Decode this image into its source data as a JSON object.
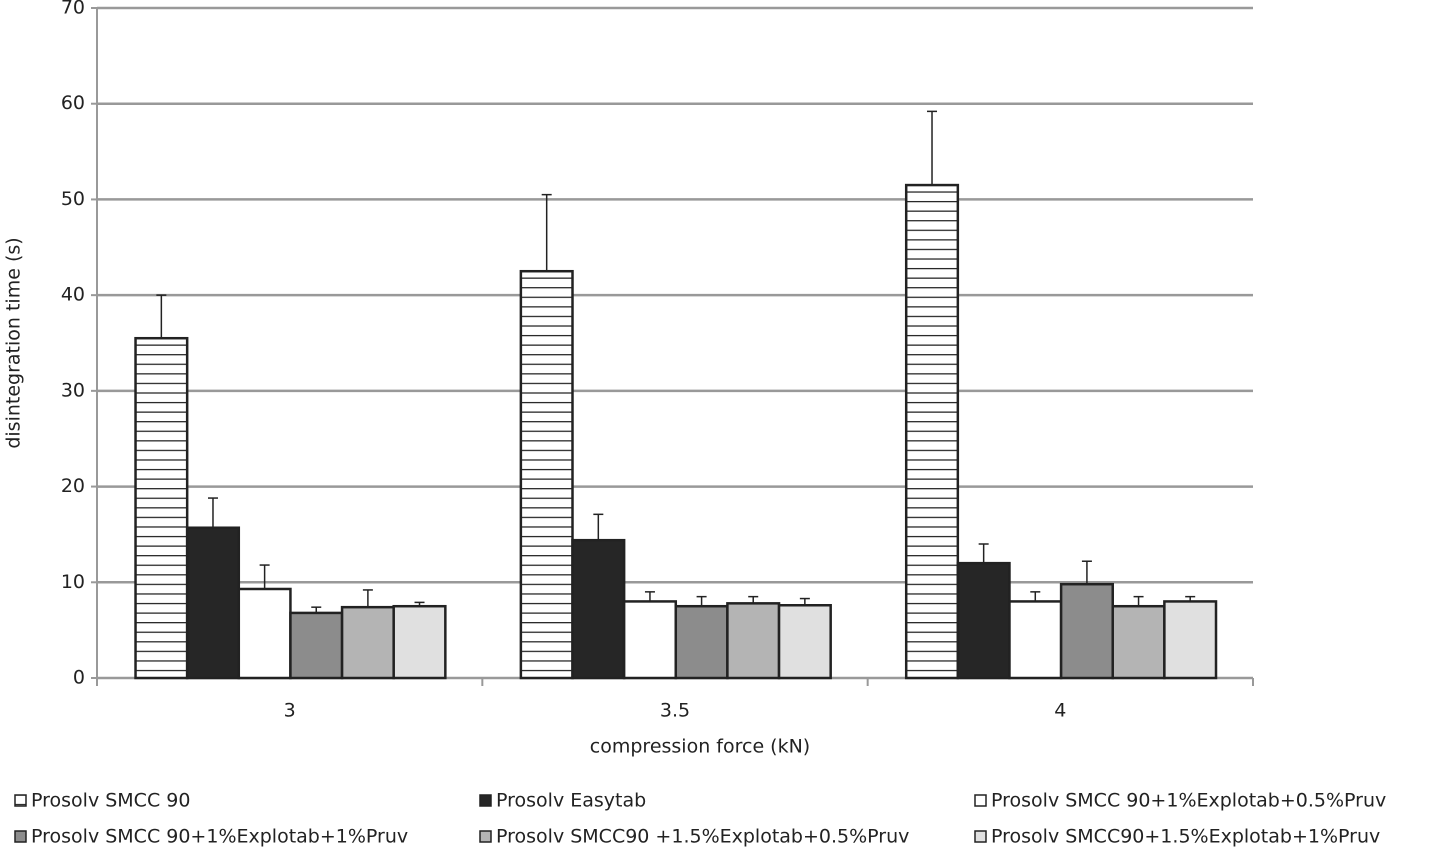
{
  "chart_data": {
    "type": "bar",
    "x_label": "compression force (kN)",
    "y_label": "disintegration time (s)",
    "categories": [
      "3",
      "3.5",
      "4"
    ],
    "series": [
      {
        "name": "Prosolv SMCC 90",
        "color": "#ffffff",
        "pattern": "hatch",
        "values": [
          35.5,
          42.5,
          51.5
        ],
        "errors": [
          4.5,
          8,
          7.7
        ]
      },
      {
        "name": "Prosolv Easytab",
        "color": "#262626",
        "values": [
          15.7,
          14.4,
          12
        ],
        "errors": [
          3.1,
          2.7,
          2
        ]
      },
      {
        "name": "Prosolv SMCC 90+1%Explotab+0.5%Pruv",
        "color": "#ffffff",
        "values": [
          9.3,
          8,
          8
        ],
        "errors": [
          2.5,
          1,
          1
        ]
      },
      {
        "name": "Prosolv SMCC 90+1%Explotab+1%Pruv",
        "color": "#8c8c8c",
        "values": [
          6.8,
          7.5,
          9.8
        ],
        "errors": [
          0.6,
          1,
          2.4
        ]
      },
      {
        "name": "Prosolv SMCC90 +1.5%Explotab+0.5%Pruv",
        "color": "#b4b4b4",
        "values": [
          7.4,
          7.8,
          7.5
        ],
        "errors": [
          1.8,
          0.7,
          1
        ]
      },
      {
        "name": "Prosolv SMCC90+1.5%Explotab+1%Pruv",
        "color": "#e0e0e0",
        "values": [
          7.5,
          7.6,
          8
        ],
        "errors": [
          0.4,
          0.7,
          0.5
        ]
      }
    ],
    "ylim": [
      0,
      70
    ],
    "yticks": [
      0,
      10,
      20,
      30,
      40,
      50,
      60,
      70
    ],
    "grid": true
  }
}
